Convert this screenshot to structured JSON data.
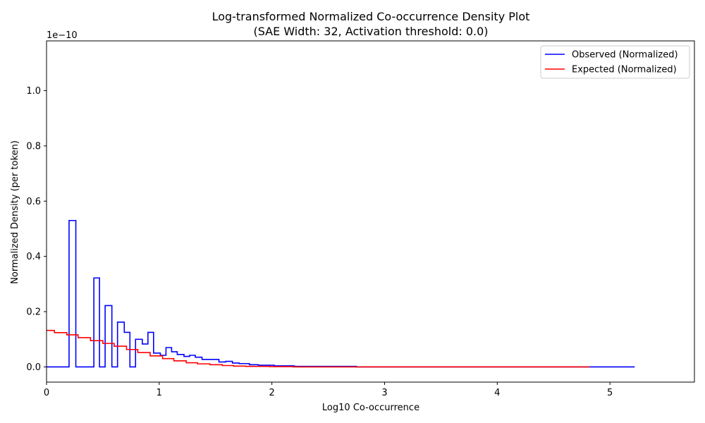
{
  "chart_data": {
    "type": "line",
    "title": "Log-transformed Normalized Co-occurrence Density Plot",
    "subtitle": "(SAE Width: 32, Activation threshold: 0.0)",
    "xlabel": "Log10 Co-occurrence",
    "ylabel": "Normalized Density (per token)",
    "y_scale_label": "1e−10",
    "xlim": [
      0,
      5.75
    ],
    "ylim": [
      -0.055,
      1.18
    ],
    "x_ticks": [
      0,
      1,
      2,
      3,
      4,
      5
    ],
    "x_tick_labels": [
      "0",
      "1",
      "2",
      "3",
      "4",
      "5"
    ],
    "y_ticks": [
      0.0,
      0.2,
      0.4,
      0.6,
      0.8,
      1.0
    ],
    "y_tick_labels": [
      "0.0",
      "0.2",
      "0.4",
      "0.6",
      "0.8",
      "1.0"
    ],
    "grid": false,
    "legend_position": "top-right",
    "series": [
      {
        "name": "Observed (Normalized)",
        "color": "#0000ff",
        "drawstyle": "steps",
        "x": [
          0,
          0.2,
          0.2,
          0.26,
          0.26,
          0.42,
          0.42,
          0.47,
          0.47,
          0.52,
          0.52,
          0.58,
          0.58,
          0.63,
          0.63,
          0.69,
          0.69,
          0.74,
          0.74,
          0.79,
          0.79,
          0.85,
          0.85,
          0.9,
          0.9,
          0.95,
          0.95,
          1.01,
          1.01,
          1.06,
          1.06,
          1.11,
          1.11,
          1.16,
          1.16,
          1.22,
          1.22,
          1.27,
          1.27,
          1.32,
          1.32,
          1.38,
          1.38,
          1.43,
          1.43,
          1.53,
          1.53,
          1.59,
          1.59,
          1.65,
          1.65,
          1.71,
          1.71,
          1.8,
          1.8,
          1.88,
          1.88,
          2.02,
          2.02,
          2.2,
          2.2,
          2.75,
          2.75,
          5.22
        ],
        "y": [
          0,
          0,
          0.53,
          0.53,
          0,
          0,
          0.322,
          0.322,
          0,
          0,
          0.222,
          0.222,
          0,
          0,
          0.162,
          0.162,
          0.125,
          0.125,
          0,
          0,
          0.1,
          0.1,
          0.083,
          0.083,
          0.125,
          0.125,
          0.05,
          0.05,
          0.042,
          0.042,
          0.07,
          0.07,
          0.055,
          0.055,
          0.045,
          0.045,
          0.038,
          0.038,
          0.042,
          0.042,
          0.035,
          0.035,
          0.027,
          0.027,
          0.027,
          0.027,
          0.018,
          0.018,
          0.02,
          0.02,
          0.014,
          0.014,
          0.012,
          0.012,
          0.008,
          0.008,
          0.006,
          0.006,
          0.004,
          0.004,
          0.002,
          0.002,
          0.0,
          0.0
        ]
      },
      {
        "name": "Expected (Normalized)",
        "color": "#ff0000",
        "drawstyle": "steps",
        "x": [
          0,
          0.07,
          0.07,
          0.18,
          0.18,
          0.28,
          0.28,
          0.39,
          0.39,
          0.5,
          0.5,
          0.6,
          0.6,
          0.71,
          0.71,
          0.81,
          0.81,
          0.92,
          0.92,
          1.03,
          1.03,
          1.13,
          1.13,
          1.24,
          1.24,
          1.34,
          1.34,
          1.45,
          1.45,
          1.56,
          1.56,
          1.66,
          1.66,
          1.77,
          1.77,
          1.87,
          1.87,
          1.98,
          1.98,
          2.09,
          2.09,
          2.19,
          2.19,
          4.82
        ],
        "y": [
          0.132,
          0.132,
          0.124,
          0.124,
          0.116,
          0.116,
          0.106,
          0.106,
          0.095,
          0.095,
          0.085,
          0.085,
          0.075,
          0.075,
          0.063,
          0.063,
          0.052,
          0.052,
          0.04,
          0.04,
          0.03,
          0.03,
          0.022,
          0.022,
          0.015,
          0.015,
          0.011,
          0.011,
          0.008,
          0.008,
          0.005,
          0.005,
          0.003,
          0.003,
          0.002,
          0.002,
          0.002,
          0.002,
          0.001,
          0.001,
          0.001,
          0.001,
          0.0,
          0.0
        ]
      }
    ]
  }
}
